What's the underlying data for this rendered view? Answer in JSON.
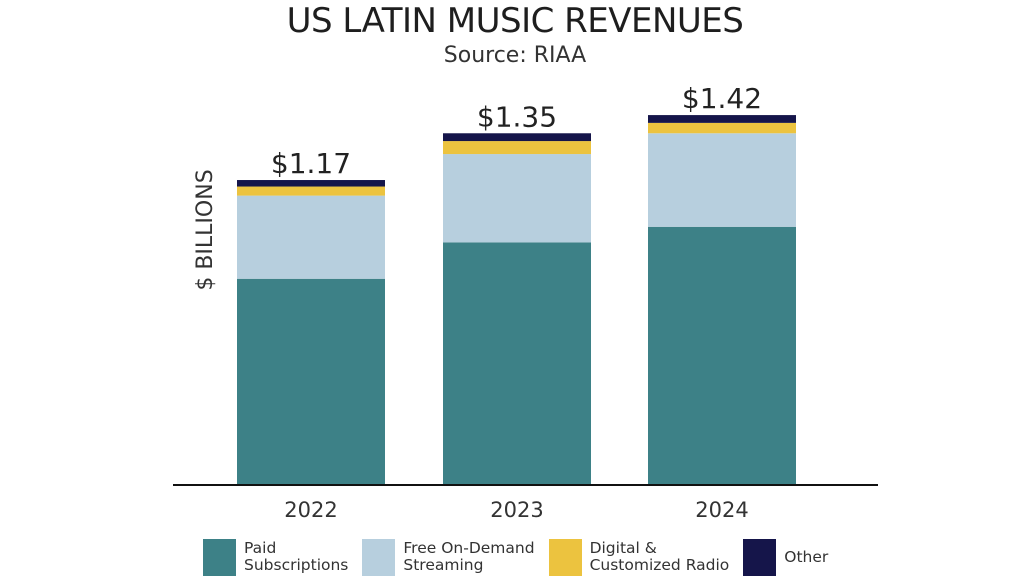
{
  "chart_data": {
    "type": "bar",
    "stacked": true,
    "title": "US LATIN MUSIC REVENUES",
    "subtitle": "Source: RIAA",
    "xlabel": "",
    "ylabel": "$ BILLIONS",
    "categories": [
      "2022",
      "2023",
      "2024"
    ],
    "totals": [
      1.17,
      1.35,
      1.42
    ],
    "total_labels": [
      "$1.17",
      "$1.35",
      "$1.42"
    ],
    "ylim": [
      0,
      1.5
    ],
    "grid": false,
    "legend_position": "bottom",
    "series": [
      {
        "name": "Paid Subscriptions",
        "label_lines": "Paid\nSubscriptions",
        "color": "#3d8187",
        "values": [
          0.79,
          0.93,
          0.99
        ]
      },
      {
        "name": "Free On-Demand Streaming",
        "label_lines": "Free On-Demand\nStreaming",
        "color": "#b7cfde",
        "values": [
          0.32,
          0.34,
          0.36
        ]
      },
      {
        "name": "Digital & Customized Radio",
        "label_lines": "Digital &\nCustomized Radio",
        "color": "#ecc33f",
        "values": [
          0.035,
          0.05,
          0.04
        ]
      },
      {
        "name": "Other",
        "label_lines": "Other",
        "color": "#15154a",
        "values": [
          0.025,
          0.03,
          0.03
        ]
      }
    ]
  }
}
